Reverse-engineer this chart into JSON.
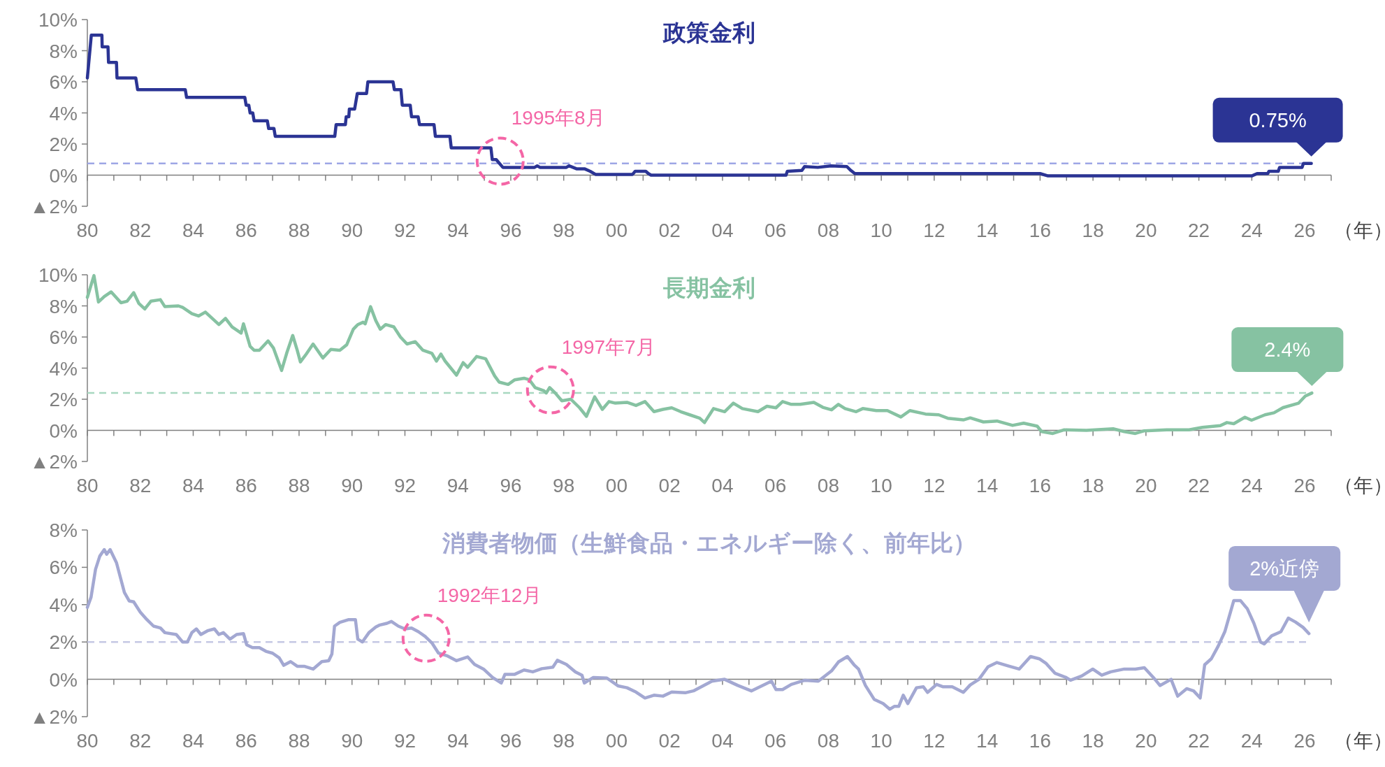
{
  "chart_data": [
    {
      "type": "line",
      "title": "政策金利",
      "xlabel": "（年）",
      "xlim": [
        1980,
        2027
      ],
      "ylim": [
        -2,
        10
      ],
      "xticks": [
        {
          "value": 1980,
          "label": "80"
        },
        {
          "value": 1981,
          "label": null
        },
        {
          "value": 1982,
          "label": "82"
        },
        {
          "value": 1983,
          "label": null
        },
        {
          "value": 1984,
          "label": "84"
        },
        {
          "value": 1985,
          "label": null
        },
        {
          "value": 1986,
          "label": "86"
        },
        {
          "value": 1987,
          "label": null
        },
        {
          "value": 1988,
          "label": "88"
        },
        {
          "value": 1989,
          "label": null
        },
        {
          "value": 1990,
          "label": "90"
        },
        {
          "value": 1991,
          "label": null
        },
        {
          "value": 1992,
          "label": "92"
        },
        {
          "value": 1993,
          "label": null
        },
        {
          "value": 1994,
          "label": "94"
        },
        {
          "value": 1995,
          "label": null
        },
        {
          "value": 1996,
          "label": "96"
        },
        {
          "value": 1997,
          "label": null
        },
        {
          "value": 1998,
          "label": "98"
        },
        {
          "value": 1999,
          "label": null
        },
        {
          "value": 2000,
          "label": "00"
        },
        {
          "value": 2001,
          "label": null
        },
        {
          "value": 2002,
          "label": "02"
        },
        {
          "value": 2003,
          "label": null
        },
        {
          "value": 2004,
          "label": "04"
        },
        {
          "value": 2005,
          "label": null
        },
        {
          "value": 2006,
          "label": "06"
        },
        {
          "value": 2007,
          "label": null
        },
        {
          "value": 2008,
          "label": "08"
        },
        {
          "value": 2009,
          "label": null
        },
        {
          "value": 2010,
          "label": "10"
        },
        {
          "value": 2011,
          "label": null
        },
        {
          "value": 2012,
          "label": "12"
        },
        {
          "value": 2013,
          "label": null
        },
        {
          "value": 2014,
          "label": "14"
        },
        {
          "value": 2015,
          "label": null
        },
        {
          "value": 2016,
          "label": "16"
        },
        {
          "value": 2017,
          "label": null
        },
        {
          "value": 2018,
          "label": "18"
        },
        {
          "value": 2019,
          "label": null
        },
        {
          "value": 2020,
          "label": "20"
        },
        {
          "value": 2021,
          "label": null
        },
        {
          "value": 2022,
          "label": "22"
        },
        {
          "value": 2023,
          "label": null
        },
        {
          "value": 2024,
          "label": "24"
        },
        {
          "value": 2025,
          "label": null
        },
        {
          "value": 2026,
          "label": "26"
        },
        {
          "value": 2027,
          "label": null
        }
      ],
      "yticks": [
        {
          "value": -2,
          "label": "▲2%"
        },
        {
          "value": 0,
          "label": "0%"
        },
        {
          "value": 2,
          "label": "2%"
        },
        {
          "value": 4,
          "label": "4%"
        },
        {
          "value": 6,
          "label": "6%"
        },
        {
          "value": 8,
          "label": "8%"
        },
        {
          "value": 10,
          "label": "10%"
        }
      ],
      "x": [
        1980.0,
        1980.15,
        1980.55,
        1980.56,
        1980.78,
        1980.8,
        1981.1,
        1981.12,
        1981.83,
        1981.9,
        1983.7,
        1983.75,
        1985.95,
        1986.0,
        1986.1,
        1986.15,
        1986.25,
        1986.3,
        1986.8,
        1986.85,
        1987.05,
        1987.1,
        1989.35,
        1989.4,
        1989.75,
        1989.78,
        1989.88,
        1989.9,
        1990.1,
        1990.2,
        1990.55,
        1990.6,
        1991.55,
        1991.6,
        1991.85,
        1991.9,
        1992.2,
        1992.25,
        1992.5,
        1992.55,
        1993.1,
        1993.15,
        1993.7,
        1993.75,
        1995.25,
        1995.3,
        1995.45,
        1995.55,
        1995.7,
        1996.9,
        1997.0,
        1997.1,
        1997.6,
        1998.1,
        1998.2,
        1998.5,
        1998.8,
        1999.0,
        1999.2,
        2000.6,
        2000.7,
        2001.1,
        2001.2,
        2001.3,
        2006.4,
        2006.45,
        2007.0,
        2007.1,
        2007.6,
        2008.1,
        2008.7,
        2008.85,
        2009.0,
        2016.0,
        2016.3,
        2020.0,
        2022.0,
        2024.0,
        2024.2,
        2024.6,
        2024.65,
        2025.0,
        2025.05,
        2025.9,
        2025.95,
        2026.25
      ],
      "series": [
        {
          "color": "#2b3494",
          "values": [
            6.25,
            9.0,
            9.0,
            8.25,
            8.25,
            7.25,
            7.25,
            6.25,
            6.25,
            5.5,
            5.5,
            5.0,
            5.0,
            4.5,
            4.5,
            4.0,
            4.0,
            3.5,
            3.5,
            3.0,
            3.0,
            2.5,
            2.5,
            3.25,
            3.25,
            3.75,
            3.75,
            4.25,
            4.25,
            5.25,
            5.25,
            6.0,
            6.0,
            5.5,
            5.5,
            4.5,
            4.5,
            3.75,
            3.75,
            3.25,
            3.25,
            2.5,
            2.5,
            1.75,
            1.75,
            1.0,
            1.0,
            0.8,
            0.5,
            0.5,
            0.6,
            0.5,
            0.5,
            0.5,
            0.6,
            0.4,
            0.4,
            0.25,
            0.05,
            0.05,
            0.25,
            0.25,
            0.1,
            0.0,
            0.0,
            0.25,
            0.3,
            0.55,
            0.5,
            0.6,
            0.55,
            0.3,
            0.1,
            0.1,
            -0.05,
            -0.05,
            -0.05,
            -0.05,
            0.1,
            0.1,
            0.25,
            0.25,
            0.5,
            0.5,
            0.75,
            0.75
          ]
        }
      ],
      "ref_lines": [
        {
          "axis": "y",
          "value": 0.75,
          "color": "#9ea6e6",
          "line_style": "dashed"
        }
      ],
      "annotations": [
        {
          "text": "1995年8月",
          "x": 1995.6,
          "y": 0.9
        },
        {
          "text": "0.75%",
          "x": 2026.25,
          "y": 0.75
        }
      ]
    },
    {
      "type": "line",
      "title": "長期金利",
      "xlabel": "（年）",
      "xlim": [
        1980,
        2027
      ],
      "ylim": [
        -2,
        10
      ],
      "xticks": [
        {
          "value": 1980,
          "label": "80"
        },
        {
          "value": 1981,
          "label": null
        },
        {
          "value": 1982,
          "label": "82"
        },
        {
          "value": 1983,
          "label": null
        },
        {
          "value": 1984,
          "label": "84"
        },
        {
          "value": 1985,
          "label": null
        },
        {
          "value": 1986,
          "label": "86"
        },
        {
          "value": 1987,
          "label": null
        },
        {
          "value": 1988,
          "label": "88"
        },
        {
          "value": 1989,
          "label": null
        },
        {
          "value": 1990,
          "label": "90"
        },
        {
          "value": 1991,
          "label": null
        },
        {
          "value": 1992,
          "label": "92"
        },
        {
          "value": 1993,
          "label": null
        },
        {
          "value": 1994,
          "label": "94"
        },
        {
          "value": 1995,
          "label": null
        },
        {
          "value": 1996,
          "label": "96"
        },
        {
          "value": 1997,
          "label": null
        },
        {
          "value": 1998,
          "label": "98"
        },
        {
          "value": 1999,
          "label": null
        },
        {
          "value": 2000,
          "label": "00"
        },
        {
          "value": 2001,
          "label": null
        },
        {
          "value": 2002,
          "label": "02"
        },
        {
          "value": 2003,
          "label": null
        },
        {
          "value": 2004,
          "label": "04"
        },
        {
          "value": 2005,
          "label": null
        },
        {
          "value": 2006,
          "label": "06"
        },
        {
          "value": 2007,
          "label": null
        },
        {
          "value": 2008,
          "label": "08"
        },
        {
          "value": 2009,
          "label": null
        },
        {
          "value": 2010,
          "label": "10"
        },
        {
          "value": 2011,
          "label": null
        },
        {
          "value": 2012,
          "label": "12"
        },
        {
          "value": 2013,
          "label": null
        },
        {
          "value": 2014,
          "label": "14"
        },
        {
          "value": 2015,
          "label": null
        },
        {
          "value": 2016,
          "label": "16"
        },
        {
          "value": 2017,
          "label": null
        },
        {
          "value": 2018,
          "label": "18"
        },
        {
          "value": 2019,
          "label": null
        },
        {
          "value": 2020,
          "label": "20"
        },
        {
          "value": 2021,
          "label": null
        },
        {
          "value": 2022,
          "label": "22"
        },
        {
          "value": 2023,
          "label": null
        },
        {
          "value": 2024,
          "label": "24"
        },
        {
          "value": 2025,
          "label": null
        },
        {
          "value": 2026,
          "label": "26"
        },
        {
          "value": 2027,
          "label": null
        }
      ],
      "yticks": [
        {
          "value": -2,
          "label": "▲2%"
        },
        {
          "value": 0,
          "label": "0%"
        },
        {
          "value": 2,
          "label": "2%"
        },
        {
          "value": 4,
          "label": "4%"
        },
        {
          "value": 6,
          "label": "6%"
        },
        {
          "value": 8,
          "label": "8%"
        },
        {
          "value": 10,
          "label": "10%"
        }
      ],
      "x": [
        1980.0,
        1980.25,
        1980.42,
        1980.64,
        1980.9,
        1981.27,
        1981.5,
        1981.75,
        1981.95,
        1982.17,
        1982.4,
        1982.76,
        1982.93,
        1983.44,
        1983.6,
        1983.95,
        1984.2,
        1984.46,
        1984.97,
        1985.22,
        1985.47,
        1985.81,
        1985.9,
        1986.15,
        1986.3,
        1986.5,
        1986.83,
        1987.03,
        1987.34,
        1987.54,
        1987.76,
        1987.93,
        1988.05,
        1988.27,
        1988.53,
        1988.9,
        1989.2,
        1989.54,
        1989.8,
        1990.05,
        1990.22,
        1990.42,
        1990.5,
        1990.7,
        1990.9,
        1991.07,
        1991.27,
        1991.58,
        1991.83,
        1992.08,
        1992.39,
        1992.68,
        1993.02,
        1993.19,
        1993.36,
        1993.52,
        1993.95,
        1994.2,
        1994.37,
        1994.71,
        1995.05,
        1995.39,
        1995.56,
        1995.9,
        1996.15,
        1996.5,
        1996.7,
        1996.92,
        1997.25,
        1997.34,
        1997.47,
        1997.68,
        1997.93,
        1998.27,
        1998.6,
        1998.86,
        1999.17,
        1999.46,
        1999.71,
        1999.95,
        2000.39,
        2000.73,
        2001.07,
        2001.41,
        2001.75,
        2002.08,
        2002.42,
        2002.76,
        2003.14,
        2003.32,
        2003.66,
        2004.08,
        2004.41,
        2004.75,
        2005.34,
        2005.68,
        2006.02,
        2006.27,
        2006.6,
        2006.94,
        2007.45,
        2007.79,
        2008.12,
        2008.38,
        2008.63,
        2009.05,
        2009.3,
        2009.81,
        2010.23,
        2010.74,
        2011.08,
        2011.67,
        2012.17,
        2012.51,
        2013.1,
        2013.36,
        2013.86,
        2014.37,
        2014.96,
        2015.38,
        2015.89,
        2016.06,
        2016.48,
        2016.9,
        2017.75,
        2018.76,
        2019.18,
        2019.6,
        2019.94,
        2020.78,
        2021.63,
        2022.13,
        2022.81,
        2023.06,
        2023.32,
        2023.74,
        2023.99,
        2024.5,
        2024.84,
        2025.18,
        2025.77,
        2026.02,
        2026.27
      ],
      "series": [
        {
          "color": "#86c2a2",
          "values": [
            8.55,
            9.95,
            8.25,
            8.6,
            8.9,
            8.2,
            8.3,
            8.85,
            8.15,
            7.8,
            8.3,
            8.4,
            7.95,
            8.0,
            7.9,
            7.5,
            7.35,
            7.6,
            6.8,
            7.2,
            6.65,
            6.25,
            6.85,
            5.4,
            5.15,
            5.15,
            5.75,
            5.3,
            3.85,
            5.0,
            6.1,
            5.15,
            4.4,
            4.9,
            5.55,
            4.65,
            5.2,
            5.15,
            5.5,
            6.5,
            6.8,
            6.95,
            6.85,
            7.95,
            7.05,
            6.5,
            6.8,
            6.65,
            6.0,
            5.55,
            5.7,
            5.15,
            4.95,
            4.45,
            4.9,
            4.45,
            3.55,
            4.35,
            4.05,
            4.75,
            4.6,
            3.5,
            3.1,
            2.95,
            3.25,
            3.35,
            3.25,
            2.75,
            2.55,
            2.4,
            2.75,
            2.4,
            1.9,
            2.0,
            1.45,
            0.9,
            2.15,
            1.35,
            1.85,
            1.75,
            1.8,
            1.6,
            1.85,
            1.2,
            1.35,
            1.45,
            1.2,
            1.0,
            0.78,
            0.5,
            1.4,
            1.2,
            1.75,
            1.4,
            1.2,
            1.55,
            1.45,
            1.85,
            1.67,
            1.67,
            1.8,
            1.48,
            1.32,
            1.67,
            1.4,
            1.2,
            1.4,
            1.27,
            1.27,
            0.86,
            1.27,
            1.05,
            1.0,
            0.78,
            0.67,
            0.8,
            0.54,
            0.6,
            0.32,
            0.46,
            0.27,
            -0.08,
            -0.2,
            0.03,
            0.0,
            0.1,
            -0.08,
            -0.2,
            -0.03,
            0.03,
            0.03,
            0.19,
            0.3,
            0.5,
            0.43,
            0.84,
            0.65,
            1.0,
            1.13,
            1.46,
            1.75,
            2.2,
            2.4
          ]
        }
      ],
      "ref_lines": [
        {
          "axis": "y",
          "value": 2.4,
          "color": "#a8d8c0",
          "line_style": "dashed"
        }
      ],
      "annotations": [
        {
          "text": "1997年7月",
          "x": 1997.5,
          "y": 2.6
        },
        {
          "text": "2.4%",
          "x": 2026.27,
          "y": 2.4
        }
      ]
    },
    {
      "type": "line",
      "title": "消費者物価（生鮮食品・エネルギー除く、前年比）",
      "xlabel": "（年）",
      "xlim": [
        1980,
        2027
      ],
      "ylim": [
        -2,
        8
      ],
      "xticks": [
        {
          "value": 1980,
          "label": "80"
        },
        {
          "value": 1981,
          "label": null
        },
        {
          "value": 1982,
          "label": "82"
        },
        {
          "value": 1983,
          "label": null
        },
        {
          "value": 1984,
          "label": "84"
        },
        {
          "value": 1985,
          "label": null
        },
        {
          "value": 1986,
          "label": "86"
        },
        {
          "value": 1987,
          "label": null
        },
        {
          "value": 1988,
          "label": "88"
        },
        {
          "value": 1989,
          "label": null
        },
        {
          "value": 1990,
          "label": "90"
        },
        {
          "value": 1991,
          "label": null
        },
        {
          "value": 1992,
          "label": "92"
        },
        {
          "value": 1993,
          "label": null
        },
        {
          "value": 1994,
          "label": "94"
        },
        {
          "value": 1995,
          "label": null
        },
        {
          "value": 1996,
          "label": "96"
        },
        {
          "value": 1997,
          "label": null
        },
        {
          "value": 1998,
          "label": "98"
        },
        {
          "value": 1999,
          "label": null
        },
        {
          "value": 2000,
          "label": "00"
        },
        {
          "value": 2001,
          "label": null
        },
        {
          "value": 2002,
          "label": "02"
        },
        {
          "value": 2003,
          "label": null
        },
        {
          "value": 2004,
          "label": "04"
        },
        {
          "value": 2005,
          "label": null
        },
        {
          "value": 2006,
          "label": "06"
        },
        {
          "value": 2007,
          "label": null
        },
        {
          "value": 2008,
          "label": "08"
        },
        {
          "value": 2009,
          "label": null
        },
        {
          "value": 2010,
          "label": "10"
        },
        {
          "value": 2011,
          "label": null
        },
        {
          "value": 2012,
          "label": "12"
        },
        {
          "value": 2013,
          "label": null
        },
        {
          "value": 2014,
          "label": "14"
        },
        {
          "value": 2015,
          "label": null
        },
        {
          "value": 2016,
          "label": "16"
        },
        {
          "value": 2017,
          "label": null
        },
        {
          "value": 2018,
          "label": "18"
        },
        {
          "value": 2019,
          "label": null
        },
        {
          "value": 2020,
          "label": "20"
        },
        {
          "value": 2021,
          "label": null
        },
        {
          "value": 2022,
          "label": "22"
        },
        {
          "value": 2023,
          "label": null
        },
        {
          "value": 2024,
          "label": "24"
        },
        {
          "value": 2025,
          "label": null
        },
        {
          "value": 2026,
          "label": "26"
        },
        {
          "value": 2027,
          "label": null
        }
      ],
      "yticks": [
        {
          "value": -2,
          "label": "▲2%"
        },
        {
          "value": 0,
          "label": "0%"
        },
        {
          "value": 2,
          "label": "2%"
        },
        {
          "value": 4,
          "label": "4%"
        },
        {
          "value": 6,
          "label": "6%"
        },
        {
          "value": 8,
          "label": "8%"
        }
      ],
      "x": [
        1980.0,
        1980.14,
        1980.31,
        1980.47,
        1980.64,
        1980.73,
        1980.86,
        1981.1,
        1981.4,
        1981.58,
        1981.75,
        1982.0,
        1982.25,
        1982.5,
        1982.76,
        1982.93,
        1983.36,
        1983.6,
        1983.78,
        1983.95,
        1984.12,
        1984.29,
        1984.54,
        1984.8,
        1984.97,
        1985.14,
        1985.39,
        1985.64,
        1985.9,
        1986.02,
        1986.24,
        1986.5,
        1986.75,
        1987.0,
        1987.25,
        1987.42,
        1987.68,
        1987.93,
        1988.19,
        1988.53,
        1988.86,
        1989.12,
        1989.24,
        1989.34,
        1989.54,
        1989.88,
        1990.13,
        1990.22,
        1990.39,
        1990.64,
        1990.9,
        1991.03,
        1991.32,
        1991.49,
        1991.75,
        1992.0,
        1992.25,
        1992.51,
        1992.76,
        1993.02,
        1993.27,
        1993.61,
        1993.95,
        1994.37,
        1994.63,
        1994.97,
        1995.31,
        1995.64,
        1995.78,
        1996.15,
        1996.5,
        1996.83,
        1997.17,
        1997.59,
        1997.76,
        1998.1,
        1998.44,
        1998.69,
        1998.78,
        1999.12,
        1999.63,
        2000.05,
        2000.39,
        2000.73,
        2001.07,
        2001.41,
        2001.75,
        2002.08,
        2002.59,
        2002.9,
        2003.6,
        2004.08,
        2004.58,
        2005.09,
        2005.51,
        2005.85,
        2006.02,
        2006.27,
        2006.6,
        2007.11,
        2007.62,
        2008.12,
        2008.38,
        2008.72,
        2008.97,
        2009.14,
        2009.4,
        2009.73,
        2010.07,
        2010.32,
        2010.49,
        2010.66,
        2010.83,
        2011.0,
        2011.33,
        2011.59,
        2011.75,
        2012.09,
        2012.34,
        2012.68,
        2013.1,
        2013.36,
        2013.69,
        2014.03,
        2014.37,
        2014.79,
        2015.21,
        2015.64,
        2015.97,
        2016.23,
        2016.56,
        2016.98,
        2017.15,
        2017.57,
        2017.99,
        2018.33,
        2018.67,
        2019.18,
        2019.6,
        2019.94,
        2020.28,
        2020.53,
        2020.95,
        2021.2,
        2021.54,
        2021.8,
        2022.05,
        2022.22,
        2022.47,
        2022.73,
        2022.98,
        2023.32,
        2023.57,
        2023.83,
        2024.08,
        2024.33,
        2024.47,
        2024.75,
        2025.1,
        2025.38,
        2025.65,
        2025.94,
        2026.16
      ],
      "series": [
        {
          "color": "#a3a8d2",
          "values": [
            3.85,
            4.4,
            5.9,
            6.6,
            6.95,
            6.7,
            6.95,
            6.25,
            4.65,
            4.2,
            4.15,
            3.6,
            3.2,
            2.85,
            2.75,
            2.5,
            2.4,
            2.0,
            2.0,
            2.5,
            2.7,
            2.4,
            2.6,
            2.7,
            2.4,
            2.5,
            2.15,
            2.4,
            2.45,
            1.85,
            1.7,
            1.7,
            1.5,
            1.4,
            1.15,
            0.75,
            0.95,
            0.7,
            0.7,
            0.55,
            0.95,
            1.0,
            1.35,
            2.85,
            3.05,
            3.2,
            3.2,
            2.15,
            2.0,
            2.5,
            2.8,
            2.9,
            3.0,
            3.1,
            2.85,
            2.7,
            2.75,
            2.55,
            2.3,
            1.95,
            1.4,
            1.25,
            1.0,
            1.2,
            0.8,
            0.55,
            0.1,
            -0.2,
            0.27,
            0.27,
            0.5,
            0.4,
            0.57,
            0.65,
            1.02,
            0.8,
            0.4,
            0.22,
            -0.2,
            0.1,
            0.07,
            -0.35,
            -0.45,
            -0.68,
            -1.0,
            -0.85,
            -0.9,
            -0.68,
            -0.72,
            -0.62,
            -0.1,
            0.0,
            -0.33,
            -0.62,
            -0.33,
            -0.1,
            -0.55,
            -0.55,
            -0.27,
            -0.05,
            -0.1,
            0.45,
            0.93,
            1.22,
            0.78,
            0.55,
            -0.33,
            -1.07,
            -1.3,
            -1.6,
            -1.45,
            -1.45,
            -0.85,
            -1.3,
            -0.45,
            -0.4,
            -0.7,
            -0.27,
            -0.4,
            -0.4,
            -0.7,
            -0.3,
            0.0,
            0.67,
            0.9,
            0.72,
            0.55,
            1.22,
            1.1,
            0.85,
            0.33,
            0.1,
            -0.05,
            0.18,
            0.55,
            0.22,
            0.4,
            0.55,
            0.55,
            0.62,
            0.1,
            -0.33,
            0.0,
            -0.9,
            -0.5,
            -0.62,
            -1.0,
            0.78,
            1.1,
            1.78,
            2.55,
            4.22,
            4.22,
            3.78,
            3.0,
            2.0,
            1.9,
            2.33,
            2.55,
            3.28,
            3.07,
            2.78,
            2.45
          ]
        }
      ],
      "ref_lines": [
        {
          "axis": "y",
          "value": 2,
          "color": "#c5c8e4",
          "line_style": "dashed"
        }
      ],
      "annotations": [
        {
          "text": "1992年12月",
          "x": 1992.8,
          "y": 2.2
        },
        {
          "text": "2%近傍",
          "x": 2026.16,
          "y": 2.45
        }
      ]
    }
  ]
}
